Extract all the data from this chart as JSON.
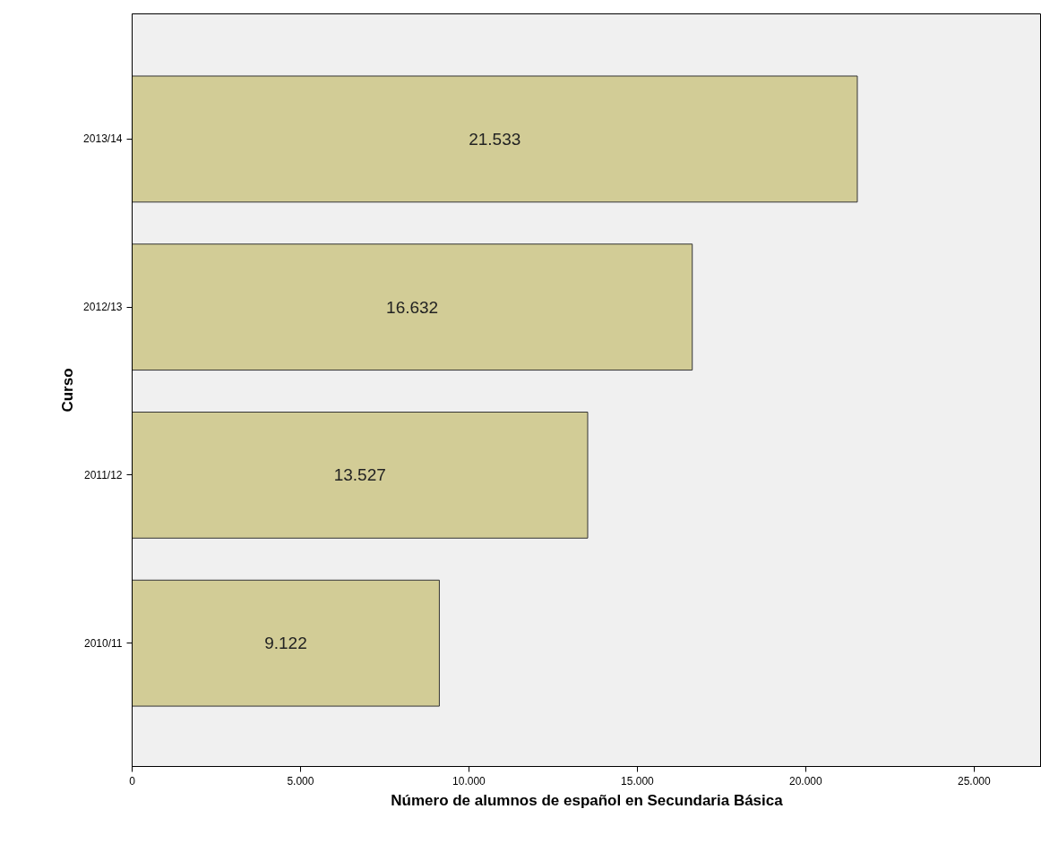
{
  "chart_data": {
    "type": "bar",
    "orientation": "horizontal",
    "xlabel": "Número de alumnos de español en Secundaria Básica",
    "ylabel": "Curso",
    "categories": [
      "2013/14",
      "2012/13",
      "2011/12",
      "2010/11"
    ],
    "values": [
      21533,
      16632,
      13527,
      9122
    ],
    "value_labels": [
      "21.533",
      "16.632",
      "13.527",
      "9.122"
    ],
    "color": "#d2cc96",
    "xlim": [
      0,
      27000
    ],
    "xticks": [
      0,
      {
        "value": 5000,
        "label": "5.000"
      },
      {
        "value": 10000,
        "label": "10.000"
      },
      {
        "value": 15000,
        "label": "15.000"
      },
      {
        "value": 20000,
        "label": "20.000"
      },
      {
        "value": 25000,
        "label": "25.000"
      }
    ],
    "grid": false
  }
}
